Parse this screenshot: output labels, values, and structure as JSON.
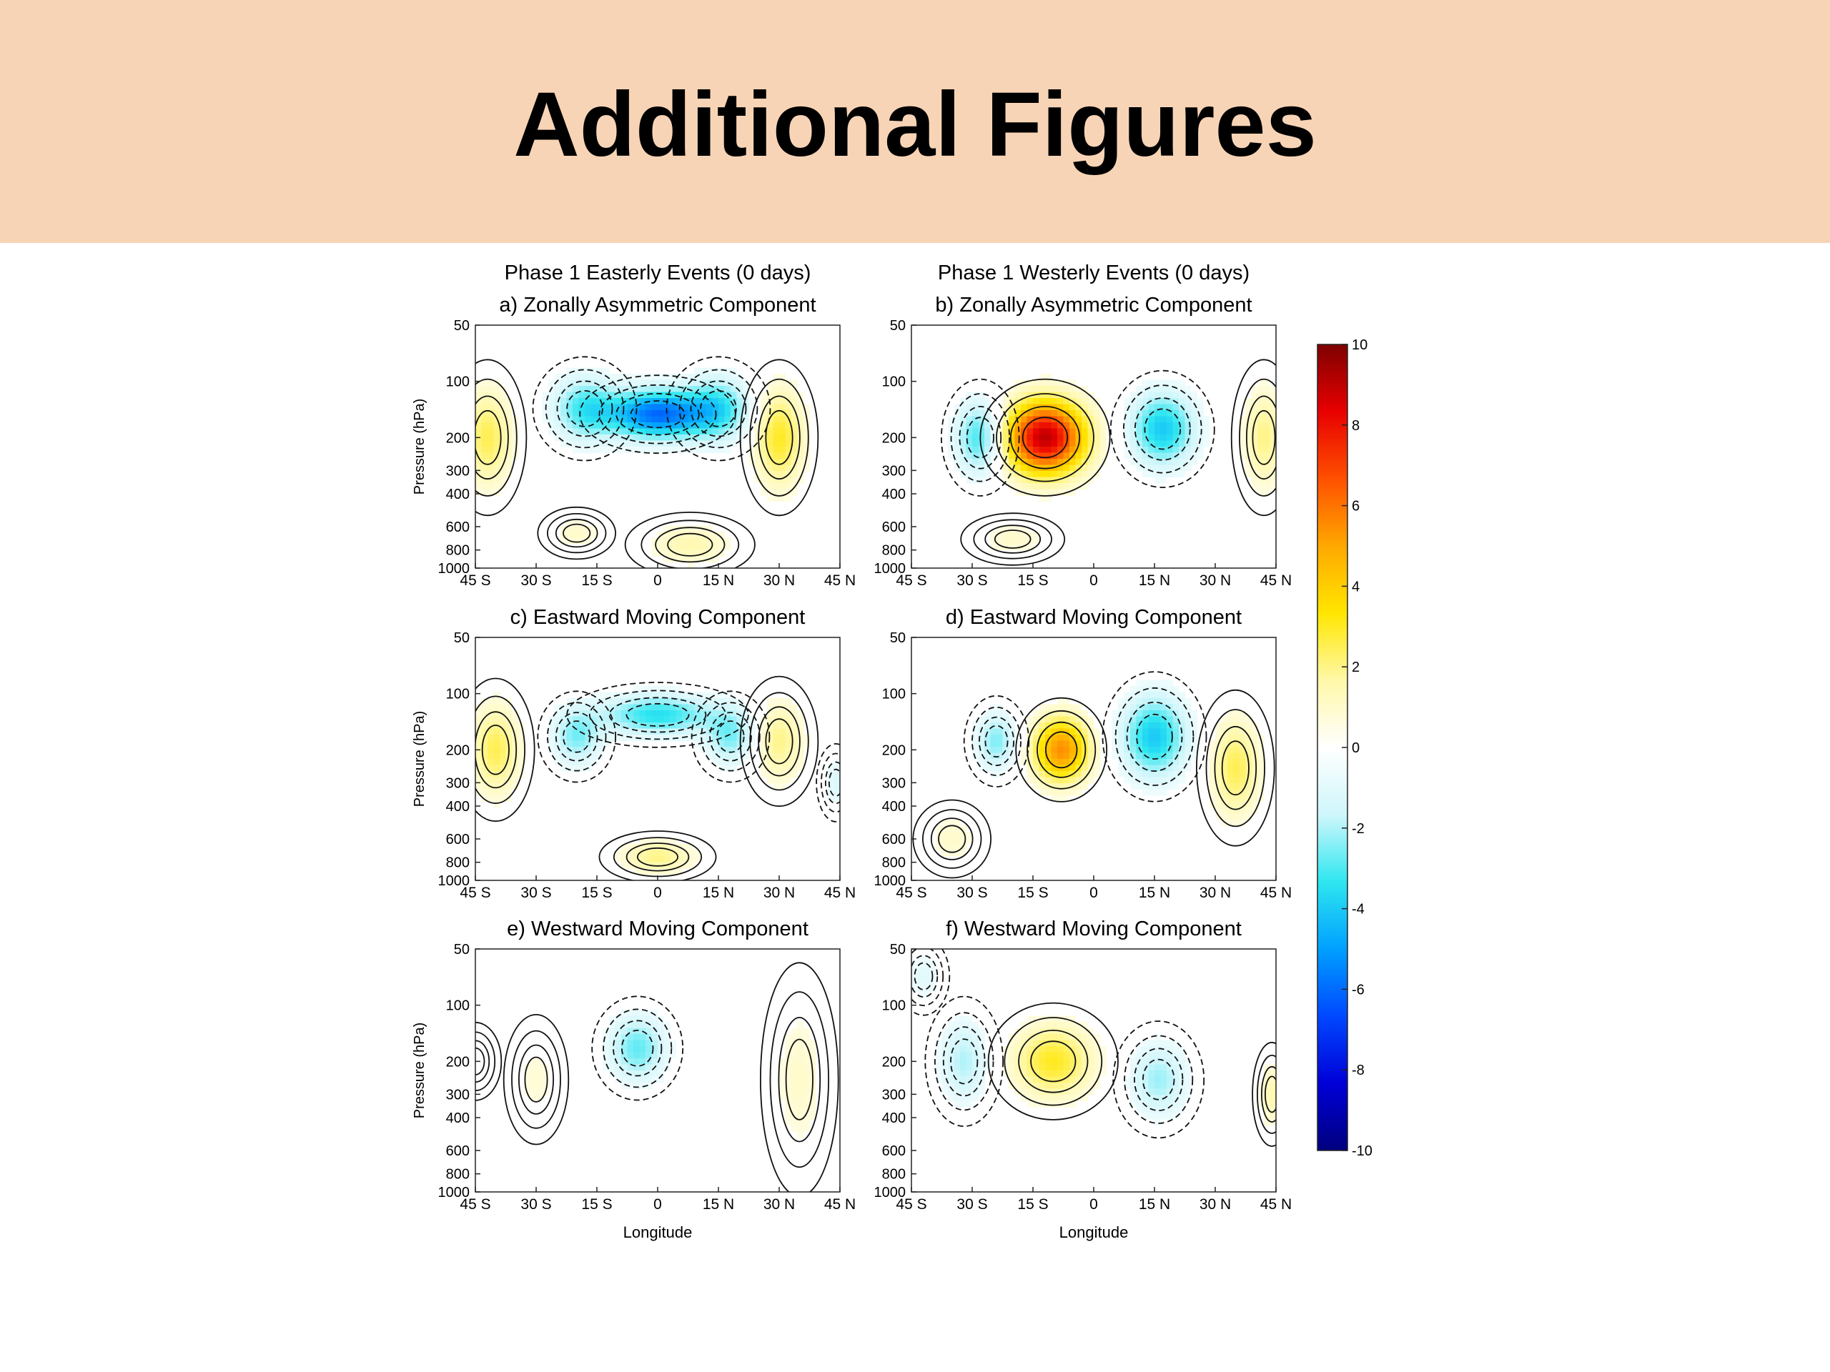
{
  "slide": {
    "title": "Additional Figures"
  },
  "chart_data": {
    "type": "heatmap",
    "column_titles": [
      "Phase 1 Easterly Events (0 days)",
      "Phase 1 Westerly Events (0 days)"
    ],
    "ylabel": "Pressure (hPa)",
    "xlabel": "Longitude",
    "x_ticks": [
      "45 S",
      "30 S",
      "15 S",
      "0",
      "15 N",
      "30 N",
      "45 N"
    ],
    "y_ticks": [
      50,
      100,
      200,
      300,
      400,
      600,
      800,
      1000
    ],
    "y_scale": "log",
    "colorbar": {
      "ticks": [
        10,
        8,
        6,
        4,
        2,
        0,
        -2,
        -4,
        -6,
        -8,
        -10
      ],
      "range": [
        -10,
        10
      ],
      "colors": [
        "#00007f",
        "#0000d8",
        "#0048ff",
        "#00a0ff",
        "#2ee6f0",
        "#cff6fb",
        "#ffffff",
        "#fff8a8",
        "#ffe600",
        "#ffa800",
        "#ff5000",
        "#e80000",
        "#7f0000"
      ]
    },
    "panels": [
      {
        "label": "a) Zonally Asymmetric Component",
        "blobs": [
          {
            "lon": -42,
            "p": 200,
            "v": 2.5,
            "lw": 6,
            "ph": 0.6
          },
          {
            "lon": 0,
            "p": 150,
            "v": -6,
            "lw": 12,
            "ph": 0.3
          },
          {
            "lon": -18,
            "p": 140,
            "v": -3,
            "lw": 8,
            "ph": 0.4
          },
          {
            "lon": 15,
            "p": 140,
            "v": -3,
            "lw": 8,
            "ph": 0.4
          },
          {
            "lon": 30,
            "p": 200,
            "v": 3,
            "lw": 6,
            "ph": 0.6
          },
          {
            "lon": 8,
            "p": 750,
            "v": 1.5,
            "lw": 10,
            "ph": 0.25
          },
          {
            "lon": -20,
            "p": 650,
            "v": 1,
            "lw": 6,
            "ph": 0.2
          }
        ]
      },
      {
        "label": "b) Zonally Asymmetric Component",
        "blobs": [
          {
            "lon": -12,
            "p": 200,
            "v": 9,
            "lw": 10,
            "ph": 0.45
          },
          {
            "lon": -28,
            "p": 200,
            "v": -3.5,
            "lw": 6,
            "ph": 0.45
          },
          {
            "lon": 17,
            "p": 180,
            "v": -4,
            "lw": 8,
            "ph": 0.45
          },
          {
            "lon": 42,
            "p": 200,
            "v": 2,
            "lw": 5,
            "ph": 0.6
          },
          {
            "lon": -20,
            "p": 700,
            "v": 1,
            "lw": 8,
            "ph": 0.2
          }
        ]
      },
      {
        "label": "c) Eastward Moving Component",
        "blobs": [
          {
            "lon": -40,
            "p": 200,
            "v": 2.5,
            "lw": 6,
            "ph": 0.55
          },
          {
            "lon": 0,
            "p": 130,
            "v": -3.5,
            "lw": 14,
            "ph": 0.25
          },
          {
            "lon": -20,
            "p": 170,
            "v": -2.5,
            "lw": 6,
            "ph": 0.35
          },
          {
            "lon": 18,
            "p": 170,
            "v": -2.5,
            "lw": 6,
            "ph": 0.35
          },
          {
            "lon": 30,
            "p": 180,
            "v": 2,
            "lw": 6,
            "ph": 0.5
          },
          {
            "lon": 0,
            "p": 750,
            "v": 2,
            "lw": 9,
            "ph": 0.2
          },
          {
            "lon": 44,
            "p": 300,
            "v": -1.2,
            "lw": 3,
            "ph": 0.3
          }
        ]
      },
      {
        "label": "d) Eastward Moving Component",
        "blobs": [
          {
            "lon": -8,
            "p": 200,
            "v": 5.5,
            "lw": 7,
            "ph": 0.4
          },
          {
            "lon": -24,
            "p": 180,
            "v": -2.5,
            "lw": 5,
            "ph": 0.35
          },
          {
            "lon": 15,
            "p": 170,
            "v": -4,
            "lw": 8,
            "ph": 0.5
          },
          {
            "lon": 35,
            "p": 250,
            "v": 2.5,
            "lw": 6,
            "ph": 0.6
          },
          {
            "lon": -35,
            "p": 600,
            "v": 1,
            "lw": 6,
            "ph": 0.3
          }
        ]
      },
      {
        "label": "e) Westward Moving Component",
        "blobs": [
          {
            "lon": -5,
            "p": 170,
            "v": -2.8,
            "lw": 7,
            "ph": 0.4
          },
          {
            "lon": 35,
            "p": 250,
            "v": 1,
            "lw": 6,
            "ph": 0.9
          },
          {
            "lon": -30,
            "p": 250,
            "v": 0.8,
            "lw": 5,
            "ph": 0.5
          },
          {
            "lon": -45,
            "p": 200,
            "v": 0.5,
            "lw": 4,
            "ph": 0.3
          }
        ]
      },
      {
        "label": "f) Westward Moving Component",
        "blobs": [
          {
            "lon": -10,
            "p": 200,
            "v": 3,
            "lw": 10,
            "ph": 0.45
          },
          {
            "lon": -32,
            "p": 200,
            "v": -2,
            "lw": 6,
            "ph": 0.5
          },
          {
            "lon": 16,
            "p": 250,
            "v": -2.2,
            "lw": 7,
            "ph": 0.45
          },
          {
            "lon": 44,
            "p": 300,
            "v": 1.5,
            "lw": 3,
            "ph": 0.4
          },
          {
            "lon": -42,
            "p": 70,
            "v": -1,
            "lw": 4,
            "ph": 0.3
          }
        ]
      }
    ]
  }
}
